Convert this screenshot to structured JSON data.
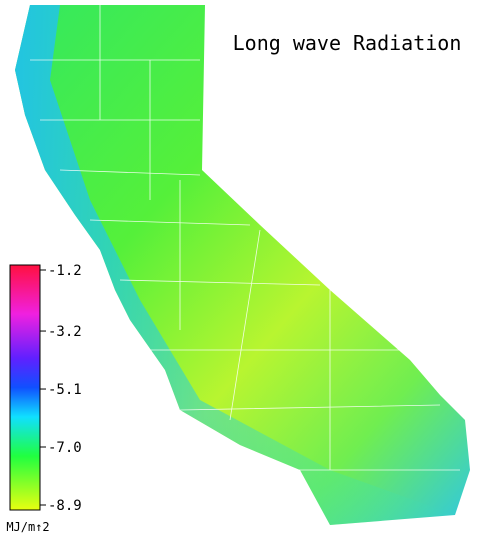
{
  "title": "Long wave Radiation",
  "legend": {
    "range": [
      -8.9,
      -1.2
    ],
    "ticks": [
      -1.2,
      -3.2,
      -5.1,
      {
        "value": -7.0,
        "label": "-7.0"
      },
      -8.9
    ],
    "unit": "MJ/m↑2"
  }
}
